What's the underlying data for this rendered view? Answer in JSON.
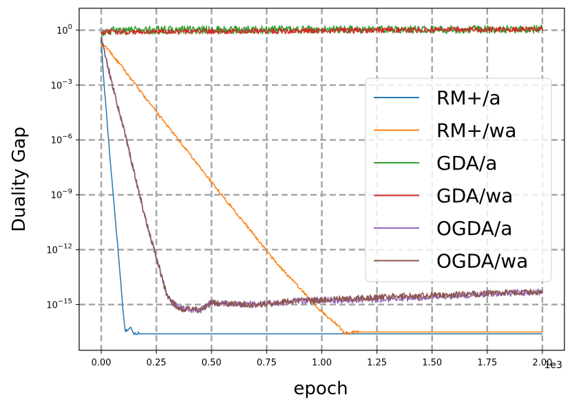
{
  "chart_data": {
    "type": "line",
    "xlabel": "epoch",
    "ylabel": "Duality Gap",
    "x_offset_label": "1e3",
    "xlim": [
      -0.1,
      2.1
    ],
    "yscale": "log",
    "ylim_log10": [
      -17.5,
      1.2
    ],
    "xticks": [
      {
        "value": 0.0,
        "label": "0.00"
      },
      {
        "value": 0.25,
        "label": "0.25"
      },
      {
        "value": 0.5,
        "label": "0.50"
      },
      {
        "value": 0.75,
        "label": "0.75"
      },
      {
        "value": 1.0,
        "label": "1.00"
      },
      {
        "value": 1.25,
        "label": "1.25"
      },
      {
        "value": 1.5,
        "label": "1.50"
      },
      {
        "value": 1.75,
        "label": "1.75"
      },
      {
        "value": 2.0,
        "label": "2.00"
      }
    ],
    "yticks": [
      {
        "exp": 0,
        "base": "10",
        "sup": "0"
      },
      {
        "exp": -3,
        "base": "10",
        "sup": "−3"
      },
      {
        "exp": -6,
        "base": "10",
        "sup": "−6"
      },
      {
        "exp": -9,
        "base": "10",
        "sup": "−9"
      },
      {
        "exp": -12,
        "base": "10",
        "sup": "−12"
      },
      {
        "exp": -15,
        "base": "10",
        "sup": "−15"
      }
    ],
    "grid": true,
    "legend_position": "center-right",
    "series": [
      {
        "name": "RM+/a",
        "color": "#1f77b4",
        "noise": 0.08,
        "points_log10": [
          [
            0.0,
            -0.5
          ],
          [
            0.01,
            -2.5
          ],
          [
            0.04,
            -7.0
          ],
          [
            0.08,
            -12.5
          ],
          [
            0.1,
            -15.5
          ],
          [
            0.11,
            -16.5
          ],
          [
            0.13,
            -16.2
          ],
          [
            0.15,
            -16.6
          ],
          [
            0.17,
            -16.55
          ],
          [
            0.17,
            -16.6
          ],
          [
            2.0,
            -16.6
          ]
        ]
      },
      {
        "name": "RM+/wa",
        "color": "#ff7f0e",
        "noise": 0.08,
        "points_log10": [
          [
            0.0,
            -0.8
          ],
          [
            0.03,
            -1.0
          ],
          [
            0.06,
            -1.5
          ],
          [
            0.1,
            -2.1
          ],
          [
            0.2,
            -3.7
          ],
          [
            0.5,
            -8.3
          ],
          [
            0.8,
            -12.8
          ],
          [
            1.0,
            -15.4
          ],
          [
            1.08,
            -16.2
          ],
          [
            1.1,
            -16.55
          ],
          [
            1.16,
            -16.5
          ],
          [
            1.2,
            -16.5
          ],
          [
            2.0,
            -16.5
          ]
        ]
      },
      {
        "name": "GDA/a",
        "color": "#2ca02c",
        "noise": 0.22,
        "points_log10": [
          [
            0.0,
            -0.2
          ],
          [
            0.03,
            -0.15
          ],
          [
            0.06,
            0.0
          ],
          [
            2.0,
            0.05
          ]
        ]
      },
      {
        "name": "GDA/wa",
        "color": "#d62728",
        "noise": 0.15,
        "points_log10": [
          [
            0.0,
            -0.1
          ],
          [
            2.0,
            0.05
          ]
        ]
      },
      {
        "name": "OGDA/a",
        "color": "#9467bd",
        "noise": 0.18,
        "points_log10": [
          [
            0.0,
            -0.4
          ],
          [
            0.02,
            -1.5
          ],
          [
            0.05,
            -3.0
          ],
          [
            0.1,
            -5.3
          ],
          [
            0.2,
            -10.3
          ],
          [
            0.3,
            -14.6
          ],
          [
            0.35,
            -15.2
          ],
          [
            0.45,
            -15.3
          ],
          [
            0.5,
            -14.9
          ],
          [
            0.7,
            -15.0
          ],
          [
            0.9,
            -14.8
          ],
          [
            1.25,
            -14.7
          ],
          [
            1.5,
            -14.6
          ],
          [
            1.75,
            -14.4
          ],
          [
            2.0,
            -14.3
          ]
        ]
      },
      {
        "name": "OGDA/wa",
        "color": "#8c564b",
        "noise": 0.18,
        "points_log10": [
          [
            0.0,
            -0.4
          ],
          [
            0.02,
            -1.5
          ],
          [
            0.05,
            -3.0
          ],
          [
            0.1,
            -5.3
          ],
          [
            0.2,
            -10.3
          ],
          [
            0.3,
            -14.6
          ],
          [
            0.35,
            -15.2
          ],
          [
            0.45,
            -15.3
          ],
          [
            0.5,
            -14.9
          ],
          [
            0.7,
            -15.0
          ],
          [
            0.9,
            -14.8
          ],
          [
            1.25,
            -14.6
          ],
          [
            1.5,
            -14.5
          ],
          [
            1.75,
            -14.4
          ],
          [
            2.0,
            -14.3
          ]
        ]
      }
    ]
  }
}
